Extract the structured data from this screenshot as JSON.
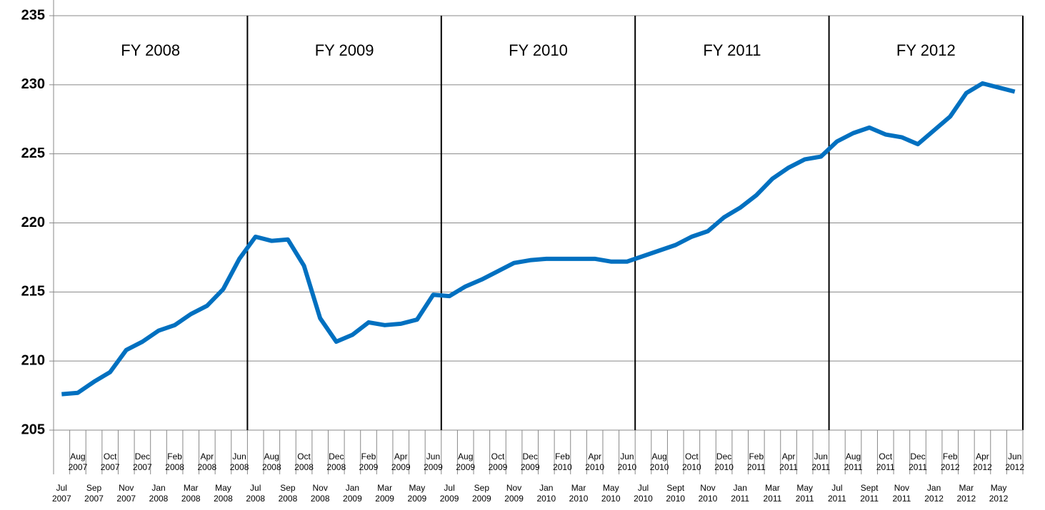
{
  "chart_data": {
    "type": "line",
    "categories": [
      "Jul 2007",
      "Aug 2007",
      "Sep 2007",
      "Oct 2007",
      "Nov 2007",
      "Dec 2007",
      "Jan 2008",
      "Feb 2008",
      "Mar 2008",
      "Apr 2008",
      "May 2008",
      "Jun 2008",
      "Jul 2008",
      "Aug 2008",
      "Sep 2008",
      "Oct 2008",
      "Nov 2008",
      "Dec 2008",
      "Jan 2009",
      "Feb 2009",
      "Mar 2009",
      "Apr 2009",
      "May 2009",
      "Jun 2009",
      "Jul 2009",
      "Aug 2009",
      "Sep 2009",
      "Oct 2009",
      "Nov 2009",
      "Dec 2009",
      "Jan 2010",
      "Feb 2010",
      "Mar 2010",
      "Apr 2010",
      "May 2010",
      "Jun 2010",
      "Jul 2010",
      "Aug 2010",
      "Sept 2010",
      "Oct 2010",
      "Nov 2010",
      "Dec 2010",
      "Jan 2011",
      "Feb 2011",
      "Mar 2011",
      "Apr 2011",
      "May 2011",
      "Jun 2011",
      "Jul 2011",
      "Aug 2011",
      "Sept 2011",
      "Oct 2011",
      "Nov 2011",
      "Dec 2011",
      "Jan 2012",
      "Feb 2012",
      "Mar 2012",
      "Apr 2012",
      "May 2012",
      "Jun 2012"
    ],
    "values": [
      207.6,
      207.7,
      208.5,
      209.2,
      210.8,
      211.4,
      212.2,
      212.6,
      213.4,
      214.0,
      215.2,
      217.4,
      219.0,
      218.7,
      218.8,
      216.9,
      213.1,
      211.4,
      211.9,
      212.8,
      212.6,
      212.7,
      213.0,
      214.8,
      214.7,
      215.4,
      215.9,
      216.5,
      217.1,
      217.3,
      217.4,
      217.4,
      217.4,
      217.4,
      217.2,
      217.2,
      217.6,
      218.0,
      218.4,
      219.0,
      219.4,
      220.4,
      221.1,
      222.0,
      223.2,
      224.0,
      224.6,
      224.8,
      225.9,
      226.5,
      226.9,
      226.4,
      226.2,
      225.7,
      226.7,
      227.7,
      229.4,
      230.1,
      229.8,
      229.5
    ],
    "color": "#0070c0",
    "annotations": [
      "FY 2008",
      "FY 2009",
      "FY 2010",
      "FY 2011",
      "FY 2012"
    ],
    "ylim": [
      205,
      235
    ],
    "yticks": [
      205,
      210,
      215,
      220,
      225,
      230,
      235
    ],
    "grid": true
  }
}
